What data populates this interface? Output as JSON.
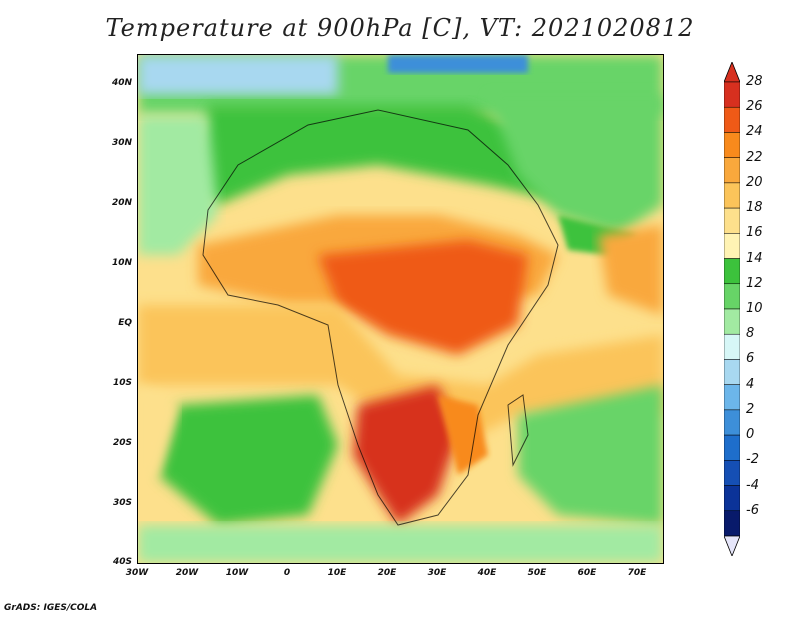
{
  "title": "Temperature at 900hPa [C], VT: 2021020812",
  "credit": "GrADS: IGES/COLA",
  "lat_labels": [
    "40N",
    "30N",
    "20N",
    "10N",
    "EQ",
    "10S",
    "20S",
    "30S",
    "40S"
  ],
  "lon_labels": [
    "30W",
    "20W",
    "10W",
    "0",
    "10E",
    "20E",
    "30E",
    "40E",
    "50E",
    "60E",
    "70E"
  ],
  "colorbar": {
    "labels": [
      "28",
      "26",
      "24",
      "22",
      "20",
      "18",
      "16",
      "14",
      "12",
      "10",
      "8",
      "6",
      "4",
      "2",
      "0",
      "-2",
      "-4",
      "-6"
    ],
    "colors": [
      "#d7301f",
      "#ef5a17",
      "#f88a1c",
      "#f9a83c",
      "#fbc45a",
      "#fde08c",
      "#fff3b4",
      "#3cc23c",
      "#67d467",
      "#a2eaa2",
      "#d7f7f7",
      "#a8d8f0",
      "#6cb6ea",
      "#3d8fd9",
      "#1e6ecb",
      "#154fb4",
      "#0b3398",
      "#081a6b"
    ]
  },
  "map": {
    "region": "Africa",
    "lat_range": [
      -40,
      45
    ],
    "lon_range": [
      -30,
      75
    ]
  }
}
